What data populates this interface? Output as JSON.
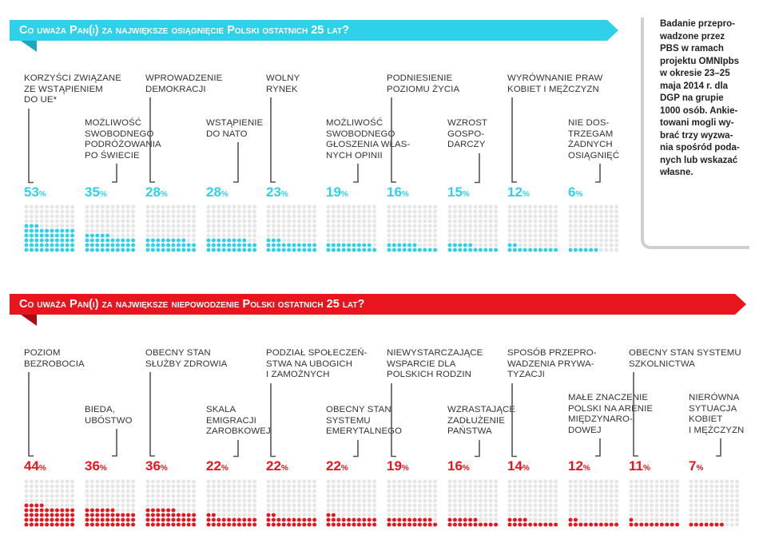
{
  "section1": {
    "title": "Co uważa Pan(i) za największe osiągnięcie Polski ostatnich 25 lat?",
    "color": "#2fd0ea",
    "items": [
      {
        "label": "KORZYŚCI ZWIĄZANE\nZE WSTĄPIENIEM\nDO UE*",
        "value": 53
      },
      {
        "label": "MOŻLIWOŚĆ\nSWOBODNEGO\nPODRÓŻOWANIA\nPO ŚWIECIE",
        "value": 35
      },
      {
        "label": "WPROWADZENIE\nDEMOKRACJI",
        "value": 28
      },
      {
        "label": "WSTĄPIENIE\nDO NATO",
        "value": 28
      },
      {
        "label": "WOLNY\nRYNEK",
        "value": 23
      },
      {
        "label": "MOŻLIWOŚĆ\nSWOBODNEGO\nGŁOSZENIA WŁAS-\nNYCH OPINII",
        "value": 19
      },
      {
        "label": "PODNIESIENIE\nPOZIOMU ŻYCIA",
        "value": 16
      },
      {
        "label": "WZROST\nGOSPO-\nDARCZY",
        "value": 15
      },
      {
        "label": "WYRÓWNANIE PRAW\nKOBIET I MĘŻCZYZN",
        "value": 12
      },
      {
        "label": "NIE DOS-\nTRZEGAM\nŻADNYCH\nOSIĄGNIĘĆ",
        "value": 6
      }
    ]
  },
  "section2": {
    "title": "Co uważa Pan(i) za największe niepowodzenie Polski ostatnich 25 lat?",
    "color": "#e8141e",
    "items": [
      {
        "label": "POZIOM\nBEZROBOCIA",
        "value": 44
      },
      {
        "label": "BIEDA,\nUBÓSTWO",
        "value": 36
      },
      {
        "label": "OBECNY STAN\nSŁUŻBY ZDROWIA",
        "value": 36
      },
      {
        "label": "SKALA\nEMIGRACJI\nZAROBKOWEJ",
        "value": 22
      },
      {
        "label": "PODZIAŁ SPOŁECZEŃ-\nSTWA NA UBOGICH\nI ZAMOŻNYCH",
        "value": 22
      },
      {
        "label": "OBECNY STAN\nSYSTEMU\nEMERYTALNEGO",
        "value": 22
      },
      {
        "label": "NIEWYSTARCZAJĄCE\nWSPARCIE DLA\nPOLSKICH RODZIN",
        "value": 19
      },
      {
        "label": "WZRASTAJĄCE\nZADŁUŻENIE\nPAŃSTWA",
        "value": 16
      },
      {
        "label": "SPOSÓB PRZEPRO-\nWADZENIA PRYWA-\nTYZACJI",
        "value": 14
      },
      {
        "label": "MAŁE ZNACZENIE\nPOLSKI NA ARENIE\nMIĘDZYNARO-\nDOWEJ",
        "value": 12
      },
      {
        "label": "OBECNY STAN SYSTEMU\nSZKOLNICTWA",
        "value": 11
      },
      {
        "label": "NIERÓWNA\nSYTUACJA\nKOBIET\nI MĘŻCZYZN",
        "value": 7
      }
    ]
  },
  "percent_unit": "%",
  "note": "Badanie przepro-\nwadzone przez\nPBS w ramach\nprojektu OMNIpbs\nw okresie 23–25\nmaja 2014 r. dla\nDGP na grupie\n1000 osób. Ankie-\ntowani mogli wy-\nbrać trzy wyzwa-\nnia spośród poda-\nnych lub wskazać\nwłasne.",
  "chart_data": [
    {
      "type": "bar",
      "title": "Co uważa Pan(i) za największe osiągnięcie Polski ostatnich 25 lat?",
      "categories": [
        "KORZYŚCI ZWIĄZANE ZE WSTĄPIENIEM DO UE*",
        "MOŻLIWOŚĆ SWOBODNEGO PODRÓŻOWANIA PO ŚWIECIE",
        "WPROWADZENIE DEMOKRACJI",
        "WSTĄPIENIE DO NATO",
        "WOLNY RYNEK",
        "MOŻLIWOŚĆ SWOBODNEGO GŁOSZENIA WŁASNYCH OPINII",
        "PODNIESIENIE POZIOMU ŻYCIA",
        "WZROST GOSPODARCZY",
        "WYRÓWNANIE PRAW KOBIET I MĘŻCZYZN",
        "NIE DOSTRZEGAM ŻADNYCH OSIĄGNIĘĆ"
      ],
      "values": [
        53,
        35,
        28,
        28,
        23,
        19,
        16,
        15,
        12,
        6
      ],
      "unit": "%",
      "ylim": [
        0,
        100
      ],
      "color": "#2fd0ea"
    },
    {
      "type": "bar",
      "title": "Co uważa Pan(i) za największe niepowodzenie Polski ostatnich 25 lat?",
      "categories": [
        "POZIOM BEZROBOCIA",
        "BIEDA, UBÓSTWO",
        "OBECNY STAN SŁUŻBY ZDROWIA",
        "SKALA EMIGRACJI ZAROBKOWEJ",
        "PODZIAŁ SPOŁECZEŃSTWA NA UBOGICH I ZAMOŻNYCH",
        "OBECNY STAN SYSTEMU EMERYTALNEGO",
        "NIEWYSTARCZAJĄCE WSPARCIE DLA POLSKICH RODZIN",
        "WZRASTAJĄCE ZADŁUŻENIE PAŃSTWA",
        "SPOSÓB PRZEPROWADZENIA PRYWATYZACJI",
        "MAŁE ZNACZENIE POLSKI NA ARENIE MIĘDZYNARODOWEJ",
        "OBECNY STAN SYSTEMU SZKOLNICTWA",
        "NIERÓWNA SYTUACJA KOBIET I MĘŻCZYZN"
      ],
      "values": [
        44,
        36,
        36,
        22,
        22,
        22,
        19,
        16,
        14,
        12,
        11,
        7
      ],
      "unit": "%",
      "ylim": [
        0,
        100
      ],
      "color": "#e8141e"
    }
  ]
}
